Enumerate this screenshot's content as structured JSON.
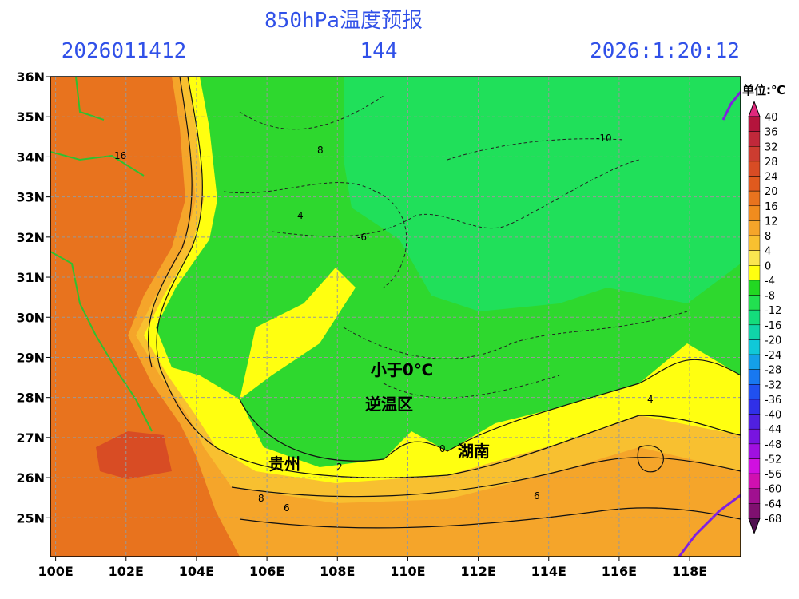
{
  "header": {
    "title": "850hPa温度预报",
    "init_time": "2026011412",
    "forecast_hour": "144",
    "valid_time": "2026:1:20:12"
  },
  "map": {
    "xlim": [
      99.85,
      119.45
    ],
    "ylim": [
      24.03,
      36
    ],
    "xticks": [
      {
        "value": 100,
        "label": "100E"
      },
      {
        "value": 102,
        "label": "102E"
      },
      {
        "value": 104,
        "label": "104E"
      },
      {
        "value": 106,
        "label": "106E"
      },
      {
        "value": 108,
        "label": "108E"
      },
      {
        "value": 110,
        "label": "110E"
      },
      {
        "value": 112,
        "label": "112E"
      },
      {
        "value": 114,
        "label": "114E"
      },
      {
        "value": 116,
        "label": "116E"
      },
      {
        "value": 118,
        "label": "118E"
      }
    ],
    "yticks": [
      {
        "value": 25,
        "label": "25N"
      },
      {
        "value": 26,
        "label": "26N"
      },
      {
        "value": 27,
        "label": "27N"
      },
      {
        "value": 28,
        "label": "28N"
      },
      {
        "value": 29,
        "label": "29N"
      },
      {
        "value": 30,
        "label": "30N"
      },
      {
        "value": 31,
        "label": "31N"
      },
      {
        "value": 32,
        "label": "32N"
      },
      {
        "value": 33,
        "label": "33N"
      },
      {
        "value": 34,
        "label": "34N"
      },
      {
        "value": 35,
        "label": "35N"
      },
      {
        "value": 36,
        "label": "36N"
      }
    ],
    "grid": true,
    "annotations": [
      "小于0℃",
      "逆温区",
      "贵州",
      "湖南"
    ],
    "contour_labels": [
      16,
      8,
      -10,
      4,
      -6,
      2,
      0,
      4,
      8,
      6,
      6
    ]
  },
  "colorbar": {
    "title": "单位:℃",
    "levels": [
      40,
      36,
      32,
      28,
      24,
      20,
      16,
      12,
      8,
      4,
      0,
      -4,
      -8,
      -12,
      -16,
      -20,
      -24,
      -28,
      -32,
      -36,
      -40,
      -44,
      -48,
      -52,
      -56,
      -60,
      -64,
      -68
    ],
    "colors": [
      "#e0287c",
      "#b4143c",
      "#c0283a",
      "#cc3c30",
      "#d84c24",
      "#e05a1e",
      "#e8731e",
      "#f08c1e",
      "#f5a52a",
      "#f8c030",
      "#fae650",
      "#ffff10",
      "#22d822",
      "#22e050",
      "#14dc7c",
      "#10d4a8",
      "#10c8d8",
      "#14a0e8",
      "#1878f0",
      "#2050f0",
      "#3030e8",
      "#5020e0",
      "#7814e0",
      "#a010e0",
      "#d010e0",
      "#d010b0",
      "#a01090",
      "#801070",
      "#501050"
    ]
  }
}
